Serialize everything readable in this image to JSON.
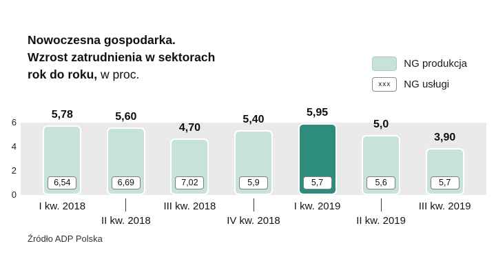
{
  "header": {
    "title_line1": "Nowoczesna gospodarka.",
    "title_line2": "Wzrost zatrudnienia w sektorach",
    "title_line3_bold": "rok do roku,",
    "title_line3_normal": " w proc."
  },
  "legend": {
    "produkcja_label": "NG produkcja",
    "uslugi_label": "NG usługi",
    "uslugi_swatch_text": "xxx"
  },
  "source": "Źródło ADP Polska",
  "colors": {
    "bar": "#c7e2d8",
    "bar_highlight": "#2e8c7c",
    "band": "#eaeaea"
  },
  "chart_data": {
    "type": "bar",
    "title": "Nowoczesna gospodarka. Wzrost zatrudnienia w sektorach rok do roku, w proc.",
    "categories": [
      "I kw. 2018",
      "II kw. 2018",
      "III kw. 2018",
      "IV kw. 2018",
      "I kw. 2019",
      "II kw. 2019",
      "III kw. 2019"
    ],
    "series": [
      {
        "name": "NG produkcja",
        "values": [
          5.78,
          5.6,
          4.7,
          5.4,
          5.95,
          5.0,
          3.9
        ],
        "labels": [
          "5,78",
          "5,60",
          "4,70",
          "5,40",
          "5,95",
          "5,0",
          "3,90"
        ]
      },
      {
        "name": "NG usługi",
        "values": [
          6.54,
          6.69,
          7.02,
          5.9,
          5.7,
          5.6,
          5.7
        ],
        "labels": [
          "6,54",
          "6,69",
          "7,02",
          "5,9",
          "5,7",
          "5,6",
          "5,7"
        ]
      }
    ],
    "highlight_index": 4,
    "ylim": [
      0,
      6
    ],
    "yticks": [
      0,
      2,
      4,
      6
    ],
    "xlabel": "",
    "ylabel": "",
    "legend_position": "top-right",
    "grid": false
  }
}
